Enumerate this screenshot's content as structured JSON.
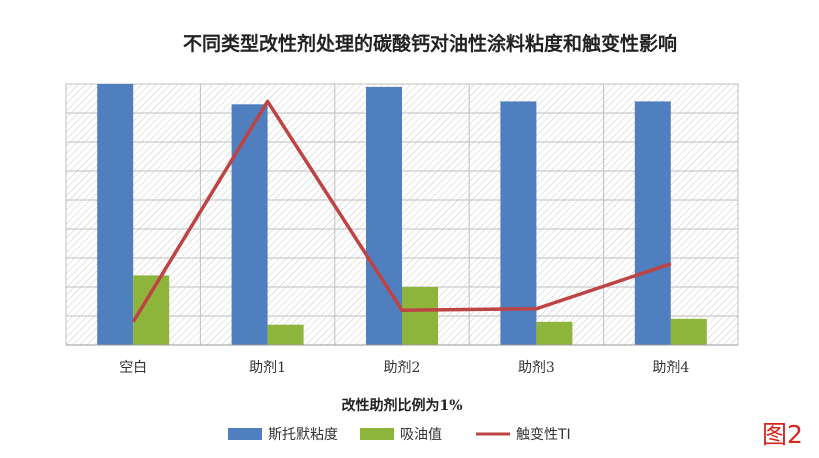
{
  "figure_tag": "图2",
  "chart_data": {
    "type": "bar",
    "title": "不同类型改性剂处理的碳酸钙对油性涂料粘度和触变性影响",
    "xlabel": "改性助剂比例为1%",
    "ylabel": "",
    "categories": [
      "空白",
      "助剂1",
      "助剂2",
      "助剂3",
      "助剂4"
    ],
    "ylim": [
      0,
      9
    ],
    "grid": true,
    "legend_position": "bottom",
    "series": [
      {
        "name": "斯托默粘度",
        "type": "bar",
        "color": "#4F7FBF",
        "values": [
          9.0,
          8.3,
          8.9,
          8.4,
          8.4
        ]
      },
      {
        "name": "吸油值",
        "type": "bar",
        "color": "#8DB53C",
        "values": [
          2.4,
          0.7,
          2.0,
          0.8,
          0.9
        ]
      },
      {
        "name": "触变性TI",
        "type": "line",
        "color": "#BE4343",
        "values": [
          0.8,
          8.4,
          1.2,
          1.25,
          2.8
        ]
      }
    ]
  }
}
